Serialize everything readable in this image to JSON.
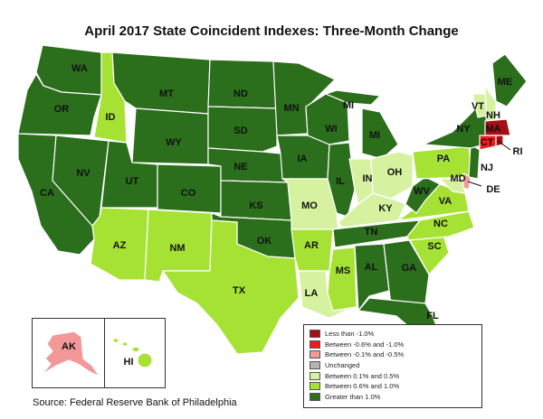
{
  "title": "April 2017 State Coincident Indexes: Three-Month Change",
  "source": "Source: Federal Reserve Bank of Philadelphia",
  "legend": [
    {
      "label": "Less than -1.0%",
      "color": "#a50f15"
    },
    {
      "label": "Between -0.6% and -1.0%",
      "color": "#f01a1a"
    },
    {
      "label": "Between -0.1% and -0.5%",
      "color": "#f29898"
    },
    {
      "label": "Unchanged",
      "color": "#b4b4b4"
    },
    {
      "label": "Between 0.1% and 0.5%",
      "color": "#d6f1a0"
    },
    {
      "label": "Between 0.6% and 1.0%",
      "color": "#a6e234"
    },
    {
      "label": "Greater than 1.0%",
      "color": "#2b6e1c"
    }
  ],
  "states": {
    "WA": "Greater than 1.0%",
    "OR": "Greater than 1.0%",
    "CA": "Greater than 1.0%",
    "NV": "Greater than 1.0%",
    "ID": "Between 0.6% and 1.0%",
    "MT": "Greater than 1.0%",
    "WY": "Greater than 1.0%",
    "UT": "Greater than 1.0%",
    "AZ": "Between 0.6% and 1.0%",
    "CO": "Greater than 1.0%",
    "NM": "Between 0.6% and 1.0%",
    "ND": "Greater than 1.0%",
    "SD": "Greater than 1.0%",
    "NE": "Greater than 1.0%",
    "KS": "Greater than 1.0%",
    "OK": "Greater than 1.0%",
    "TX": "Between 0.6% and 1.0%",
    "MN": "Greater than 1.0%",
    "IA": "Greater than 1.0%",
    "MO": "Between 0.1% and 0.5%",
    "AR": "Between 0.6% and 1.0%",
    "LA": "Between 0.1% and 0.5%",
    "WI": "Greater than 1.0%",
    "IL": "Greater than 1.0%",
    "MS": "Between 0.6% and 1.0%",
    "MI": "Greater than 1.0%",
    "IN": "Between 0.1% and 0.5%",
    "OH": "Between 0.1% and 0.5%",
    "KY": "Between 0.1% and 0.5%",
    "TN": "Greater than 1.0%",
    "AL": "Greater than 1.0%",
    "GA": "Greater than 1.0%",
    "FL": "Greater than 1.0%",
    "SC": "Between 0.6% and 1.0%",
    "NC": "Between 0.6% and 1.0%",
    "VA": "Between 0.6% and 1.0%",
    "WV": "Greater than 1.0%",
    "PA": "Between 0.6% and 1.0%",
    "NY": "Greater than 1.0%",
    "VT": "Between 0.1% and 0.5%",
    "NH": "Between 0.1% and 0.5%",
    "ME": "Greater than 1.0%",
    "MA": "Less than -1.0%",
    "RI": "Less than -1.0%",
    "CT": "Between -0.6% and -1.0%",
    "NJ": "Greater than 1.0%",
    "DE": "Between -0.1% and -0.5%",
    "MD": "Between 0.1% and 0.5%",
    "AK": "Between -0.1% and -0.5%",
    "HI": "Between 0.6% and 1.0%"
  },
  "labels": {
    "WA": "WA",
    "OR": "OR",
    "CA": "CA",
    "NV": "NV",
    "ID": "ID",
    "MT": "MT",
    "WY": "WY",
    "UT": "UT",
    "AZ": "AZ",
    "CO": "CO",
    "NM": "NM",
    "ND": "ND",
    "SD": "SD",
    "NE": "NE",
    "KS": "KS",
    "OK": "OK",
    "TX": "TX",
    "MN": "MN",
    "IA": "IA",
    "MO": "MO",
    "AR": "AR",
    "LA": "LA",
    "WI": "WI",
    "IL": "IL",
    "MS": "MS",
    "MI": "MI",
    "MI2": "MI",
    "IN": "IN",
    "OH": "OH",
    "KY": "KY",
    "TN": "TN",
    "AL": "AL",
    "GA": "GA",
    "FL": "FL",
    "SC": "SC",
    "NC": "NC",
    "VA": "VA",
    "WV": "WV",
    "PA": "PA",
    "NY": "NY",
    "VT": "VT",
    "NH": "NH",
    "ME": "ME",
    "MA": "MA",
    "CT": "CT",
    "RI": "RI",
    "NJ": "NJ",
    "DE": "DE",
    "MD": "MD",
    "AK": "AK",
    "HI": "HI"
  }
}
